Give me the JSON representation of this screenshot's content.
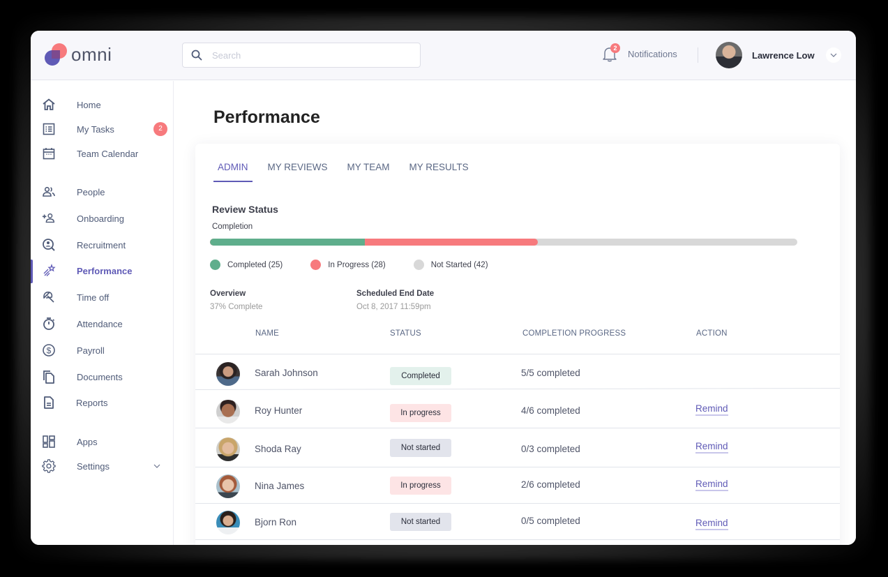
{
  "app": {
    "logo_text": "omni"
  },
  "search": {
    "placeholder": "Search",
    "value": ""
  },
  "header": {
    "notifications_label": "Notifications",
    "notifications_count": "2",
    "user_name": "Lawrence Low"
  },
  "sidebar": {
    "items": [
      {
        "label": "Home",
        "icon": "home-icon"
      },
      {
        "label": "My Tasks",
        "icon": "tasks-icon",
        "badge": "2"
      },
      {
        "label": "Team Calendar",
        "icon": "calendar-icon"
      },
      {
        "label": "People",
        "icon": "people-icon"
      },
      {
        "label": "Onboarding",
        "icon": "add-user-icon"
      },
      {
        "label": "Recruitment",
        "icon": "recruitment-icon"
      },
      {
        "label": "Performance",
        "icon": "shooting-star-icon",
        "active": true
      },
      {
        "label": "Time off",
        "icon": "umbrella-icon"
      },
      {
        "label": "Attendance",
        "icon": "stopwatch-icon"
      },
      {
        "label": "Payroll",
        "icon": "dollar-icon"
      },
      {
        "label": "Documents",
        "icon": "documents-icon"
      },
      {
        "label": "Reports",
        "icon": "report-icon"
      },
      {
        "label": "Apps",
        "icon": "apps-grid-icon"
      },
      {
        "label": "Settings",
        "icon": "gear-icon",
        "expandable": true
      }
    ]
  },
  "page": {
    "title": "Performance"
  },
  "tabs": [
    {
      "label": "ADMIN",
      "active": true
    },
    {
      "label": "MY REVIEWS"
    },
    {
      "label": "MY TEAM"
    },
    {
      "label": "MY RESULTS"
    }
  ],
  "review_status": {
    "title": "Review Status",
    "completion_label": "Completion",
    "segments": [
      {
        "label": "Completed (25)",
        "count": 25,
        "color": "#5fae8c"
      },
      {
        "label": "In Progress (28)",
        "count": 28,
        "color": "#f77a7d"
      },
      {
        "label": "Not Started (42)",
        "count": 42,
        "color": "#d8d8d8"
      }
    ],
    "overview_label": "Overview",
    "overview_value": "37% Complete",
    "end_date_label": "Scheduled End Date",
    "end_date_value": "Oct 8, 2017 11:59pm"
  },
  "table": {
    "headers": [
      "NAME",
      "STATUS",
      "COMPLETION PROGRESS",
      "ACTION"
    ],
    "rows": [
      {
        "name": "Sarah Johnson",
        "status": "Completed",
        "progress": "5/5 completed",
        "action": ""
      },
      {
        "name": "Roy Hunter",
        "status": "In progress",
        "progress": "4/6 completed",
        "action": "Remind"
      },
      {
        "name": "Shoda Ray",
        "status": "Not started",
        "progress": "0/3 completed",
        "action": "Remind"
      },
      {
        "name": "Nina James",
        "status": "In progress",
        "progress": "2/6 completed",
        "action": "Remind"
      },
      {
        "name": "Bjorn Ron",
        "status": "Not started",
        "progress": "0/5 completed",
        "action": "Remind"
      }
    ]
  },
  "colors": {
    "accent": "#5f5ab6",
    "danger": "#f77a7d",
    "success": "#5fae8c",
    "neutral": "#d8d8d8"
  }
}
